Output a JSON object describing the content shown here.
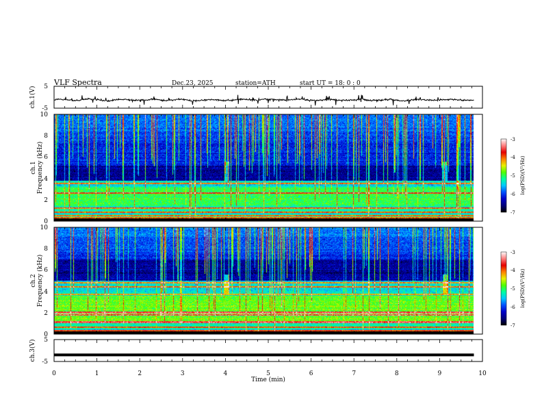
{
  "header": {
    "title": "VLF  Spectra",
    "date": "Dec.23, 2025",
    "station": "station=ATH",
    "start_ut": "start  UT  =    18: 0   : 0"
  },
  "chart_data": [
    {
      "type": "line",
      "panel": "ch1-waveform",
      "ylabel": "ch.1(V)",
      "ylim": [
        -5,
        5
      ],
      "yticks": [
        "5",
        "-5"
      ],
      "xlim": [
        0,
        10
      ],
      "trace_level": -1.2,
      "trace_end": 9.8
    },
    {
      "type": "heatmap",
      "panel": "ch1-spectrogram",
      "ylabel_line1": "ch.1",
      "ylabel_line2": "Frequency  (kHz)",
      "ylim": [
        0,
        10
      ],
      "yticks": [
        "0",
        "2",
        "4",
        "6",
        "8",
        "10"
      ],
      "xlim": [
        0,
        10
      ],
      "data_end": 9.8,
      "colorbar": {
        "label": "log(PSD)(V²/Hz)",
        "range": [
          -7,
          -3
        ],
        "ticks": [
          "-3",
          "-4",
          "-5",
          "-6",
          "-7"
        ]
      },
      "features": {
        "noise_floor": [
          -4.4,
          -4.8
        ],
        "dark_band_khz": [
          3.8,
          5.2
        ],
        "hum_lines_khz": [
          3.5,
          2.6,
          1.2,
          0.8,
          0.5,
          0.3
        ],
        "bright_band_khz": [
          1.4,
          3.2
        ]
      }
    },
    {
      "type": "heatmap",
      "panel": "ch2-spectrogram",
      "ylabel_line1": "ch.2",
      "ylabel_line2": "Frequency  (kHz)",
      "ylim": [
        0,
        10
      ],
      "yticks": [
        "0",
        "2",
        "4",
        "6",
        "8",
        "10"
      ],
      "xlim": [
        0,
        10
      ],
      "data_end": 9.8,
      "colorbar": {
        "label": "log(PSD)(V²/Hz)",
        "range": [
          -7,
          -3
        ],
        "ticks": [
          "-3",
          "-4",
          "-5",
          "-6",
          "-7"
        ]
      },
      "features": {
        "noise_floor": [
          -4.2,
          -4.6
        ],
        "dark_band_khz": [
          5.0,
          7.0
        ],
        "hum_lines_khz": [
          4.8,
          4.4,
          3.7,
          2.0,
          1.8,
          1.1,
          0.6,
          0.3
        ],
        "bright_band_khz": [
          1.0,
          3.6
        ]
      }
    },
    {
      "type": "line",
      "panel": "ch3-waveform",
      "ylabel": "ch.3(V)",
      "ylim": [
        -5,
        5
      ],
      "yticks": [
        "5",
        "-5"
      ],
      "xlim": [
        0,
        10
      ],
      "trace_level": -2.0,
      "trace_end": 9.8
    }
  ],
  "xaxis": {
    "label": "Time  (min)",
    "ticks": [
      "0",
      "1",
      "2",
      "3",
      "4",
      "5",
      "6",
      "7",
      "8",
      "9",
      "10"
    ]
  },
  "colormap": [
    "#000000",
    "#00007a",
    "#0000c8",
    "#0050ff",
    "#00c8ff",
    "#00ffa0",
    "#50ff00",
    "#e8f000",
    "#ff8000",
    "#e60000",
    "#ff8080",
    "#ffffff"
  ]
}
